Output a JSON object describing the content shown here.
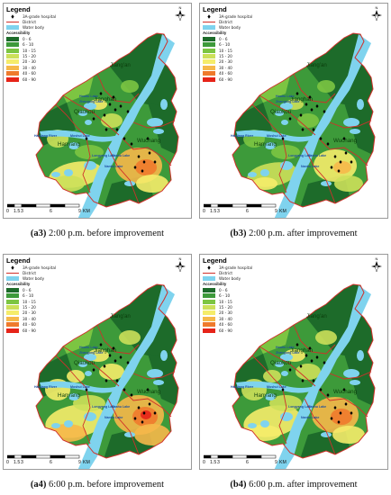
{
  "legend": {
    "title": "Legend",
    "hospital": "3A-grade hospital",
    "district": "District",
    "water": "Water body",
    "accessibility": "Accessibility",
    "classes": [
      {
        "label": "0 - 6",
        "color": "#1d6b2a"
      },
      {
        "label": "6 - 10",
        "color": "#3d9a3a"
      },
      {
        "label": "10 - 15",
        "color": "#7cc542"
      },
      {
        "label": "15 - 20",
        "color": "#cce05a"
      },
      {
        "label": "20 - 30",
        "color": "#f5ec6a"
      },
      {
        "label": "30 - 40",
        "color": "#f6b84a"
      },
      {
        "label": "40 - 60",
        "color": "#ef7a2c"
      },
      {
        "label": "60 - 90",
        "color": "#e62419"
      }
    ]
  },
  "north": "N",
  "scale": {
    "ticks": [
      "0",
      "1.5",
      "3",
      "6",
      "9"
    ],
    "unit": "KM"
  },
  "panels": [
    {
      "id": "a3",
      "caption_id": "(a3)",
      "caption_text": " 2:00 p.m. before improvement"
    },
    {
      "id": "b3",
      "caption_id": "(b3)",
      "caption_text": " 2:00 p.m. after improvement"
    },
    {
      "id": "a4",
      "caption_id": "(a4)",
      "caption_text": " 6:00 p.m. before improvement"
    },
    {
      "id": "b4",
      "caption_id": "(b4)",
      "caption_text": " 6:00 p.m. after improvement"
    }
  ],
  "map_labels": [
    "Jiang'an",
    "Jianghan",
    "Qiaokou",
    "Hanyang",
    "Wuchang",
    "Houhu Lake",
    "Zhangong Lake",
    "Moshui Lake",
    "Longyang Lake",
    "Nanhu Lake",
    "Shahu Lake",
    "Hanjiang River"
  ],
  "colors": {
    "water": "#7fd3ee",
    "district": "#d0302a",
    "background": "#ffffff",
    "hospital": "#000000"
  }
}
